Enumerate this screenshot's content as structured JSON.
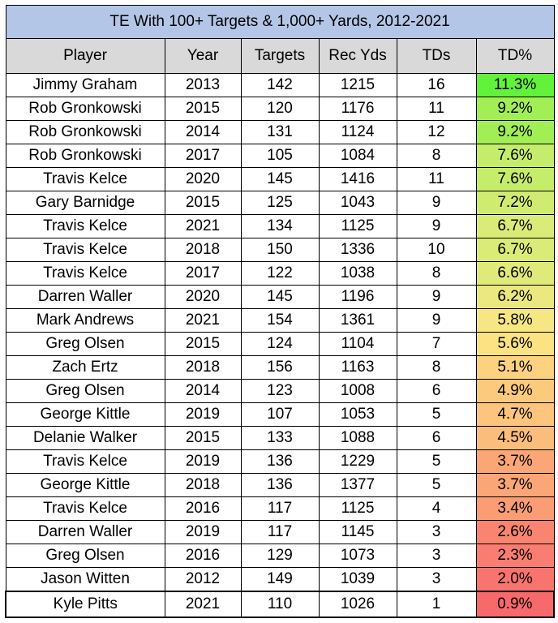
{
  "chart_data": {
    "type": "table",
    "title": "TE With 100+ Targets & 1,000+ Yards, 2012-2021",
    "columns": [
      "Player",
      "Year",
      "Targets",
      "Rec Yds",
      "TDs",
      "TD%"
    ],
    "rows": [
      {
        "player": "Jimmy Graham",
        "year": "2013",
        "targets": "142",
        "rec_yds": "1215",
        "tds": "16",
        "td_pct": "11.3%",
        "color": "#63f23c"
      },
      {
        "player": "Rob Gronkowski",
        "year": "2015",
        "targets": "120",
        "rec_yds": "1176",
        "tds": "11",
        "td_pct": "9.2%",
        "color": "#a2ef55"
      },
      {
        "player": "Rob Gronkowski",
        "year": "2014",
        "targets": "131",
        "rec_yds": "1124",
        "tds": "12",
        "td_pct": "9.2%",
        "color": "#a2ef55"
      },
      {
        "player": "Rob Gronkowski",
        "year": "2017",
        "targets": "105",
        "rec_yds": "1084",
        "tds": "8",
        "td_pct": "7.6%",
        "color": "#c6ec6b"
      },
      {
        "player": "Travis Kelce",
        "year": "2020",
        "targets": "145",
        "rec_yds": "1416",
        "tds": "11",
        "td_pct": "7.6%",
        "color": "#c6ec6b"
      },
      {
        "player": "Gary Barnidge",
        "year": "2015",
        "targets": "125",
        "rec_yds": "1043",
        "tds": "9",
        "td_pct": "7.2%",
        "color": "#d0ec70"
      },
      {
        "player": "Travis Kelce",
        "year": "2021",
        "targets": "134",
        "rec_yds": "1125",
        "tds": "9",
        "td_pct": "6.7%",
        "color": "#dbeb77"
      },
      {
        "player": "Travis Kelce",
        "year": "2018",
        "targets": "150",
        "rec_yds": "1336",
        "tds": "10",
        "td_pct": "6.7%",
        "color": "#dbeb77"
      },
      {
        "player": "Travis Kelce",
        "year": "2017",
        "targets": "122",
        "rec_yds": "1038",
        "tds": "8",
        "td_pct": "6.6%",
        "color": "#dfea7a"
      },
      {
        "player": "Darren Waller",
        "year": "2020",
        "targets": "145",
        "rec_yds": "1196",
        "tds": "9",
        "td_pct": "6.2%",
        "color": "#ebe87f"
      },
      {
        "player": "Mark Andrews",
        "year": "2021",
        "targets": "154",
        "rec_yds": "1361",
        "tds": "9",
        "td_pct": "5.8%",
        "color": "#f6e784"
      },
      {
        "player": "Greg Olsen",
        "year": "2015",
        "targets": "124",
        "rec_yds": "1104",
        "tds": "7",
        "td_pct": "5.6%",
        "color": "#fce282"
      },
      {
        "player": "Zach Ertz",
        "year": "2018",
        "targets": "156",
        "rec_yds": "1163",
        "tds": "8",
        "td_pct": "5.1%",
        "color": "#fcd17f"
      },
      {
        "player": "Greg Olsen",
        "year": "2014",
        "targets": "123",
        "rec_yds": "1008",
        "tds": "6",
        "td_pct": "4.9%",
        "color": "#fcca7d"
      },
      {
        "player": "George Kittle",
        "year": "2019",
        "targets": "107",
        "rec_yds": "1053",
        "tds": "5",
        "td_pct": "4.7%",
        "color": "#fcc47c"
      },
      {
        "player": "Delanie Walker",
        "year": "2015",
        "targets": "133",
        "rec_yds": "1088",
        "tds": "6",
        "td_pct": "4.5%",
        "color": "#fbbd7b"
      },
      {
        "player": "Travis Kelce",
        "year": "2019",
        "targets": "136",
        "rec_yds": "1229",
        "tds": "5",
        "td_pct": "3.7%",
        "color": "#fba677"
      },
      {
        "player": "George Kittle",
        "year": "2018",
        "targets": "136",
        "rec_yds": "1377",
        "tds": "5",
        "td_pct": "3.7%",
        "color": "#fba677"
      },
      {
        "player": "Travis Kelce",
        "year": "2016",
        "targets": "117",
        "rec_yds": "1125",
        "tds": "4",
        "td_pct": "3.4%",
        "color": "#fa9d75"
      },
      {
        "player": "Darren Waller",
        "year": "2019",
        "targets": "117",
        "rec_yds": "1145",
        "tds": "3",
        "td_pct": "2.6%",
        "color": "#f98571"
      },
      {
        "player": "Greg Olsen",
        "year": "2016",
        "targets": "129",
        "rec_yds": "1073",
        "tds": "3",
        "td_pct": "2.3%",
        "color": "#f97d70"
      },
      {
        "player": "Jason Witten",
        "year": "2012",
        "targets": "149",
        "rec_yds": "1039",
        "tds": "3",
        "td_pct": "2.0%",
        "color": "#f8746e"
      },
      {
        "player": "Kyle Pitts",
        "year": "2021",
        "targets": "110",
        "rec_yds": "1026",
        "tds": "1",
        "td_pct": "0.9%",
        "color": "#f8696b"
      }
    ]
  }
}
